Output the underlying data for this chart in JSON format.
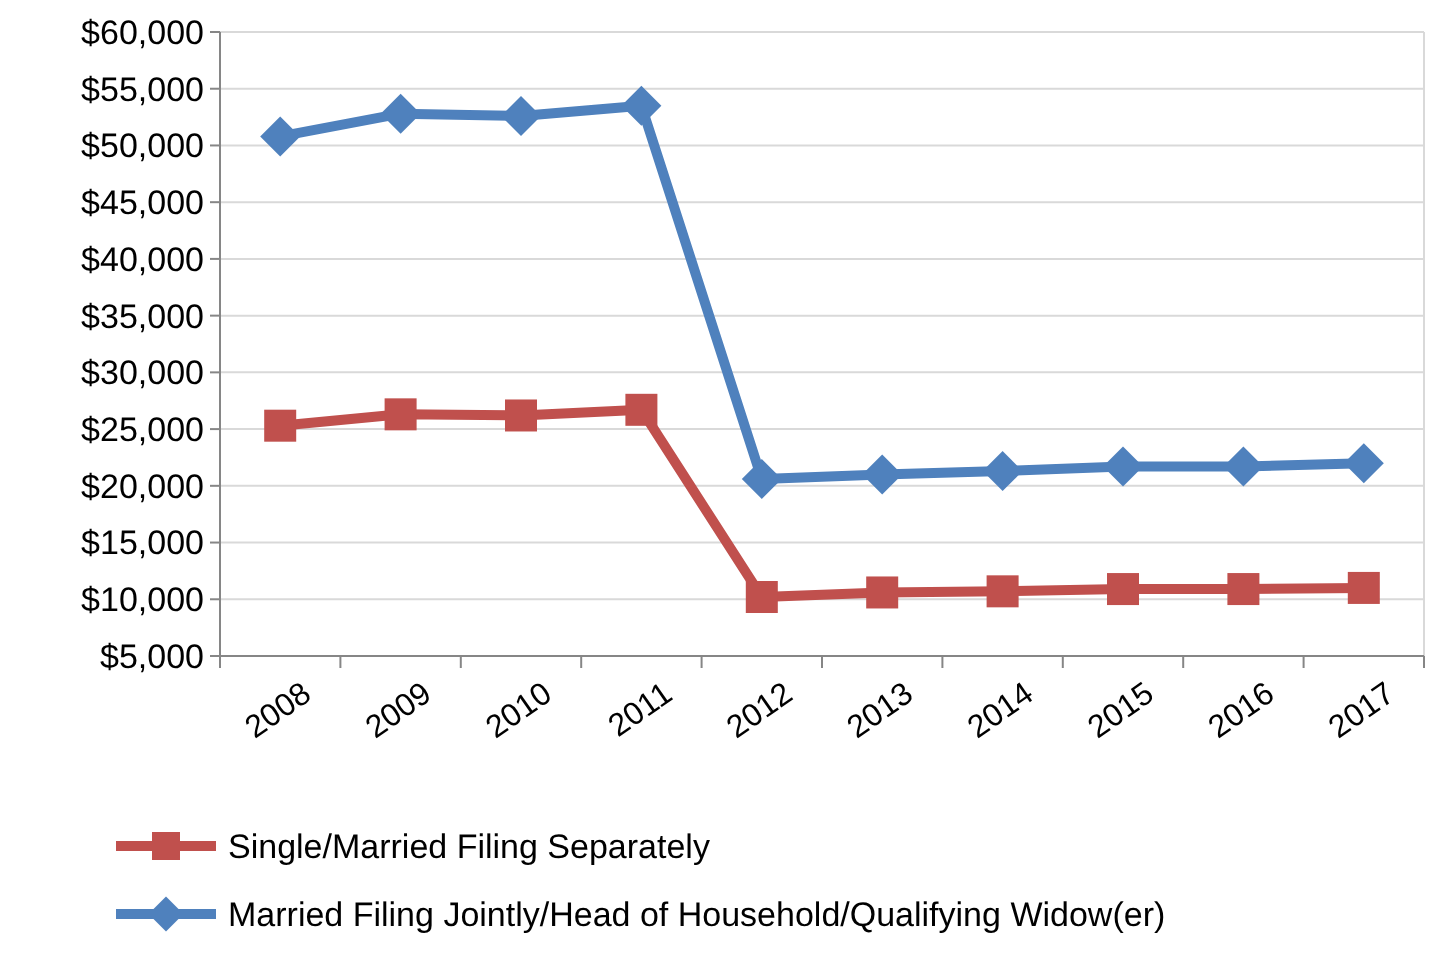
{
  "chart_data": {
    "type": "line",
    "categories": [
      "2008",
      "2009",
      "2010",
      "2011",
      "2012",
      "2013",
      "2014",
      "2015",
      "2016",
      "2017"
    ],
    "series": [
      {
        "name": "Single/Married Filing Separately",
        "color": "#c0504d",
        "marker": "square",
        "values": [
          25300,
          26300,
          26200,
          26700,
          10200,
          10600,
          10700,
          10900,
          10900,
          11000
        ]
      },
      {
        "name": "Married Filing Jointly/Head of Household/Qualifying Widow(er)",
        "color": "#4f81bd",
        "marker": "diamond",
        "values": [
          50800,
          52800,
          52600,
          53500,
          20600,
          21000,
          21300,
          21700,
          21700,
          22000
        ]
      }
    ],
    "ylim": [
      5000,
      60000
    ],
    "yticks": [
      {
        "value": 5000,
        "label": "$5,000"
      },
      {
        "value": 10000,
        "label": "$10,000"
      },
      {
        "value": 15000,
        "label": "$15,000"
      },
      {
        "value": 20000,
        "label": "$20,000"
      },
      {
        "value": 25000,
        "label": "$25,000"
      },
      {
        "value": 30000,
        "label": "$30,000"
      },
      {
        "value": 35000,
        "label": "$35,000"
      },
      {
        "value": 40000,
        "label": "$40,000"
      },
      {
        "value": 45000,
        "label": "$45,000"
      },
      {
        "value": 50000,
        "label": "$50,000"
      },
      {
        "value": 55000,
        "label": "$55,000"
      },
      {
        "value": 60000,
        "label": "$60,000"
      }
    ],
    "grid": "y",
    "legend": "bottom",
    "line_style": "solid"
  }
}
